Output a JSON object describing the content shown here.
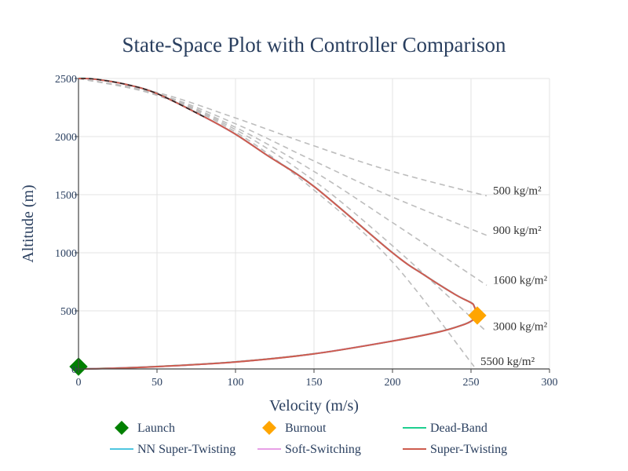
{
  "chart_data": {
    "type": "line",
    "title": "State-Space Plot with Controller Comparison",
    "xlabel": "Velocity (m/s)",
    "ylabel": "Altitude (m)",
    "xlim": [
      0,
      300
    ],
    "ylim": [
      0,
      2500
    ],
    "xticks": [
      0,
      50,
      100,
      150,
      200,
      250,
      300
    ],
    "yticks": [
      0,
      500,
      1000,
      1500,
      2000,
      2500
    ],
    "grid": true,
    "legend_position": "bottom",
    "reference_curves": [
      {
        "label": "500 kg/m²",
        "x": [
          0,
          50,
          100,
          150,
          200,
          260
        ],
        "y": [
          2500,
          2380,
          2160,
          1920,
          1700,
          1490
        ]
      },
      {
        "label": "900 kg/m²",
        "x": [
          0,
          50,
          100,
          150,
          200,
          260
        ],
        "y": [
          2500,
          2370,
          2110,
          1790,
          1480,
          1150
        ]
      },
      {
        "label": "1600 kg/m²",
        "x": [
          0,
          50,
          100,
          150,
          200,
          260
        ],
        "y": [
          2500,
          2365,
          2080,
          1700,
          1260,
          720
        ]
      },
      {
        "label": "3000 kg/m²",
        "x": [
          0,
          50,
          100,
          150,
          200,
          260
        ],
        "y": [
          2500,
          2360,
          2060,
          1620,
          1060,
          320
        ]
      },
      {
        "label": "5500 kg/m²",
        "x": [
          0,
          50,
          100,
          150,
          200,
          252
        ],
        "y": [
          2500,
          2355,
          2040,
          1540,
          920,
          20
        ]
      }
    ],
    "markers": [
      {
        "name": "Launch",
        "x": 0,
        "y": 20,
        "color": "#008000",
        "symbol": "diamond"
      },
      {
        "name": "Burnout",
        "x": 254,
        "y": 460,
        "color": "#FFA500",
        "symbol": "diamond"
      }
    ],
    "ascent": {
      "x": [
        0,
        20,
        50,
        100,
        150,
        200,
        230,
        245,
        250,
        253,
        254
      ],
      "y": [
        0,
        5,
        20,
        60,
        130,
        240,
        320,
        380,
        410,
        440,
        460
      ]
    },
    "descent": {
      "x": [
        254,
        252,
        250,
        240,
        220,
        200,
        150,
        120,
        100,
        80,
        50,
        30,
        10,
        0
      ],
      "y": [
        460,
        540,
        570,
        640,
        810,
        1000,
        1570,
        1840,
        2020,
        2170,
        2370,
        2450,
        2495,
        2500
      ]
    },
    "series": [
      {
        "name": "Dead-Band",
        "color": "#1fcf8f"
      },
      {
        "name": "NN Super-Twisting",
        "color": "#4fc6e0"
      },
      {
        "name": "Soft-Switching",
        "color": "#e8a0e6"
      },
      {
        "name": "Super-Twisting",
        "color": "#cd5c4e"
      }
    ]
  }
}
